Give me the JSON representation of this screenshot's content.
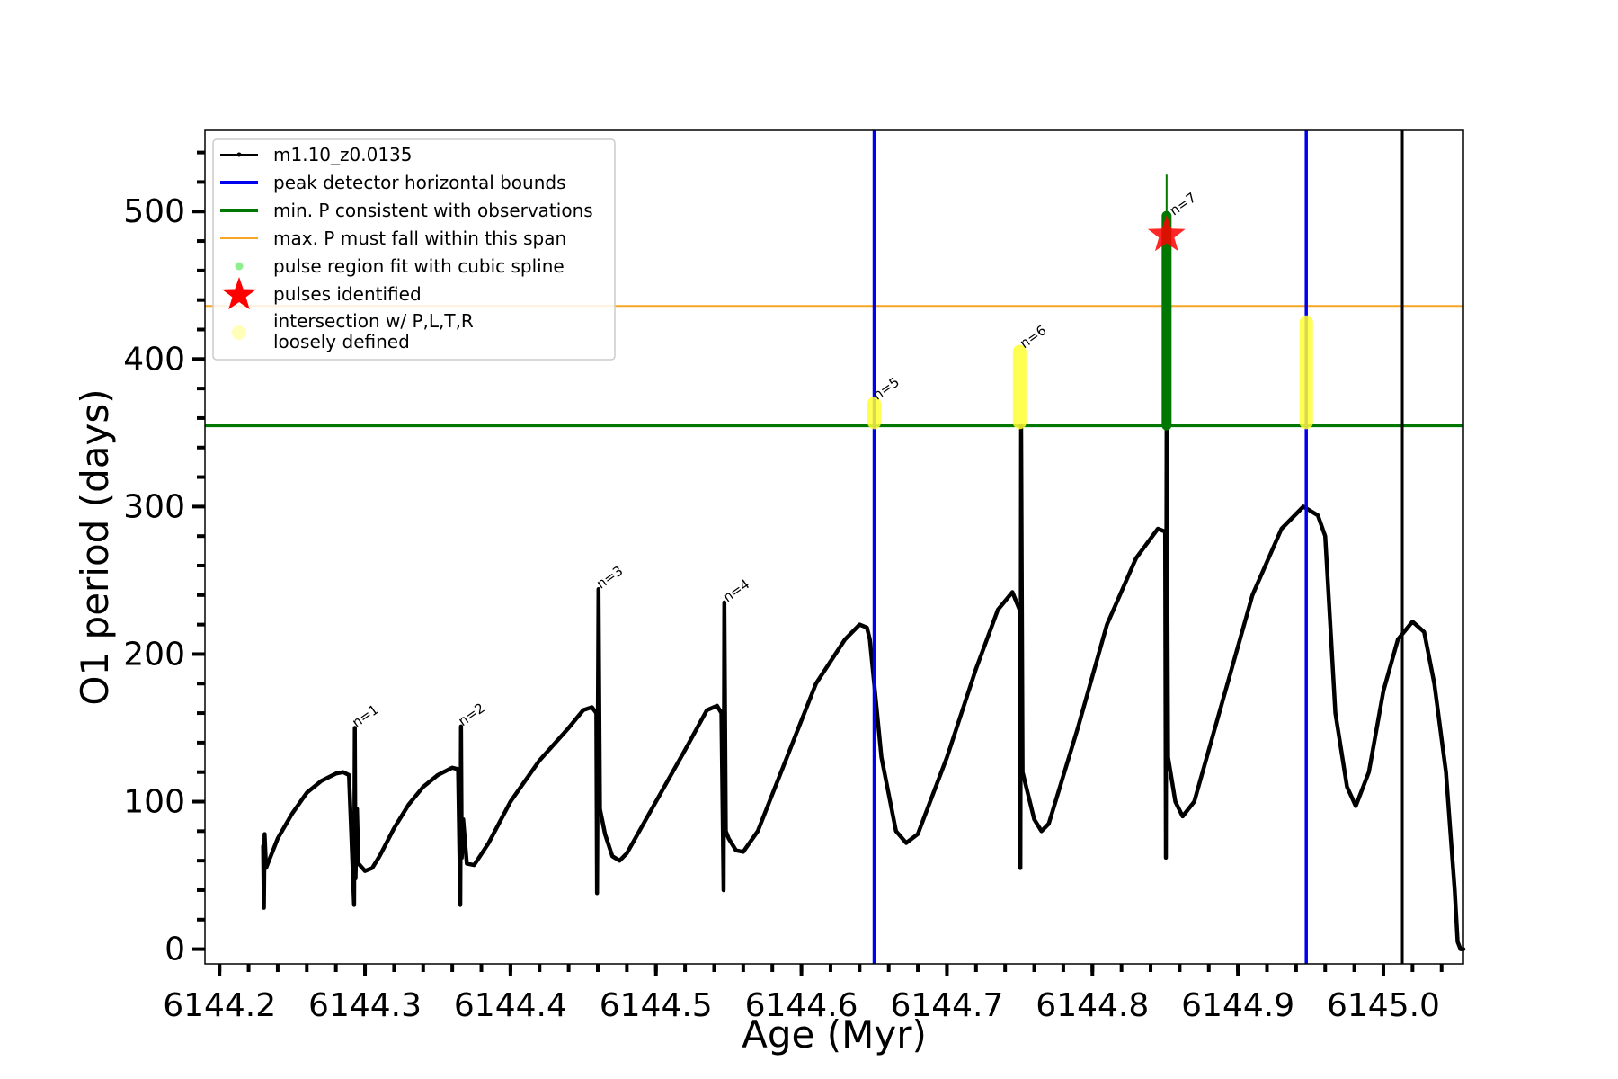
{
  "chart_data": {
    "type": "line",
    "xlabel": "Age (Myr)",
    "ylabel": "O1 period (days)",
    "xlim": [
      6144.19,
      6145.055
    ],
    "ylim": [
      -10,
      555
    ],
    "x_ticks": [
      6144.2,
      6144.3,
      6144.4,
      6144.5,
      6144.6,
      6144.7,
      6144.8,
      6144.9,
      6145.0
    ],
    "x_tick_labels": [
      "6144.2",
      "6144.3",
      "6144.4",
      "6144.5",
      "6144.6",
      "6144.7",
      "6144.8",
      "6144.9",
      "6145.0"
    ],
    "y_ticks": [
      0,
      100,
      200,
      300,
      400,
      500
    ],
    "y_tick_labels": [
      "0",
      "100",
      "200",
      "300",
      "400",
      "500"
    ],
    "grid": false,
    "legend_position": "top-left",
    "colors": {
      "series": "#000000",
      "bounds": "#0000ee",
      "min_p": "#007700",
      "max_p": "#f5a623",
      "spline": "#90ee90",
      "pulse_star": "#ff0000",
      "loose": "#ffff33"
    },
    "series": [
      {
        "name": "m1.10_z0.0135",
        "points": [
          [
            6144.23,
            70
          ],
          [
            6144.2305,
            28
          ],
          [
            6144.231,
            78
          ],
          [
            6144.232,
            55
          ],
          [
            6144.24,
            75
          ],
          [
            6144.25,
            92
          ],
          [
            6144.26,
            106
          ],
          [
            6144.27,
            114
          ],
          [
            6144.28,
            119
          ],
          [
            6144.285,
            120
          ],
          [
            6144.289,
            118
          ],
          [
            6144.2925,
            30
          ],
          [
            6144.293,
            150
          ],
          [
            6144.2935,
            48
          ],
          [
            6144.2945,
            95
          ],
          [
            6144.2955,
            58
          ],
          [
            6144.3,
            53
          ],
          [
            6144.305,
            55
          ],
          [
            6144.31,
            63
          ],
          [
            6144.32,
            82
          ],
          [
            6144.33,
            98
          ],
          [
            6144.34,
            110
          ],
          [
            6144.35,
            118
          ],
          [
            6144.36,
            123
          ],
          [
            6144.364,
            122
          ],
          [
            6144.3655,
            30
          ],
          [
            6144.366,
            151
          ],
          [
            6144.3665,
            62
          ],
          [
            6144.3675,
            88
          ],
          [
            6144.37,
            58
          ],
          [
            6144.375,
            57
          ],
          [
            6144.385,
            72
          ],
          [
            6144.4,
            100
          ],
          [
            6144.42,
            128
          ],
          [
            6144.44,
            150
          ],
          [
            6144.45,
            162
          ],
          [
            6144.456,
            164
          ],
          [
            6144.459,
            160
          ],
          [
            6144.4595,
            38
          ],
          [
            6144.4605,
            244
          ],
          [
            6144.4615,
            95
          ],
          [
            6144.465,
            78
          ],
          [
            6144.47,
            63
          ],
          [
            6144.475,
            60
          ],
          [
            6144.48,
            65
          ],
          [
            6144.5,
            100
          ],
          [
            6144.52,
            135
          ],
          [
            6144.535,
            162
          ],
          [
            6144.542,
            165
          ],
          [
            6144.545,
            160
          ],
          [
            6144.5465,
            40
          ],
          [
            6144.547,
            235
          ],
          [
            6144.548,
            80
          ],
          [
            6144.55,
            75
          ],
          [
            6144.555,
            67
          ],
          [
            6144.56,
            66
          ],
          [
            6144.57,
            80
          ],
          [
            6144.59,
            130
          ],
          [
            6144.61,
            180
          ],
          [
            6144.63,
            210
          ],
          [
            6144.64,
            220
          ],
          [
            6144.645,
            218
          ],
          [
            6144.647,
            210
          ],
          [
            6144.655,
            130
          ],
          [
            6144.665,
            80
          ],
          [
            6144.672,
            72
          ],
          [
            6144.68,
            78
          ],
          [
            6144.7,
            130
          ],
          [
            6144.72,
            190
          ],
          [
            6144.735,
            230
          ],
          [
            6144.745,
            242
          ],
          [
            6144.75,
            230
          ],
          [
            6144.7505,
            55
          ],
          [
            6144.751,
            355
          ],
          [
            6144.752,
            120
          ],
          [
            6144.76,
            88
          ],
          [
            6144.765,
            80
          ],
          [
            6144.77,
            85
          ],
          [
            6144.79,
            150
          ],
          [
            6144.81,
            220
          ],
          [
            6144.83,
            265
          ],
          [
            6144.845,
            285
          ],
          [
            6144.85,
            283
          ],
          [
            6144.8505,
            62
          ],
          [
            6144.851,
            355
          ],
          [
            6144.852,
            130
          ],
          [
            6144.857,
            100
          ],
          [
            6144.862,
            90
          ],
          [
            6144.87,
            100
          ],
          [
            6144.89,
            170
          ],
          [
            6144.91,
            240
          ],
          [
            6144.93,
            285
          ],
          [
            6144.945,
            300
          ],
          [
            6144.955,
            294
          ],
          [
            6144.96,
            280
          ],
          [
            6144.967,
            160
          ],
          [
            6144.975,
            110
          ],
          [
            6144.981,
            97
          ],
          [
            6144.99,
            120
          ],
          [
            6145.0,
            175
          ],
          [
            6145.01,
            210
          ],
          [
            6145.02,
            222
          ],
          [
            6145.028,
            215
          ],
          [
            6145.035,
            180
          ],
          [
            6145.043,
            120
          ],
          [
            6145.046,
            80
          ],
          [
            6145.049,
            40
          ],
          [
            6145.051,
            5
          ],
          [
            6145.053,
            0
          ],
          [
            6145.06,
            0
          ]
        ]
      }
    ],
    "vertical_lines": [
      {
        "name": "peak detector horizontal bounds",
        "x": 6144.65
      },
      {
        "name": "peak detector horizontal bounds",
        "x": 6144.947
      },
      {
        "name": "",
        "x": 6145.013
      }
    ],
    "horizontal_lines": [
      {
        "name": "min. P consistent with observations",
        "y": 355
      },
      {
        "name": "max. P must fall within this span",
        "y": 436
      }
    ],
    "pulse_region_spline": {
      "x": 6144.851,
      "y_range": [
        355,
        525
      ]
    },
    "pulses_identified": [
      {
        "x": 6144.851,
        "y": 484
      }
    ],
    "loosely_defined": [
      {
        "x": 6144.65,
        "y_range": [
          357,
          370
        ]
      },
      {
        "x": 6144.75,
        "y_range": [
          357,
          405
        ]
      },
      {
        "x": 6144.947,
        "y_range": [
          357,
          425
        ]
      }
    ],
    "annotations": [
      {
        "text": "n=1",
        "x": 6144.294,
        "y": 150
      },
      {
        "text": "n=2",
        "x": 6144.367,
        "y": 151
      },
      {
        "text": "n=3",
        "x": 6144.462,
        "y": 244
      },
      {
        "text": "n=4",
        "x": 6144.549,
        "y": 235
      },
      {
        "text": "n=5",
        "x": 6144.652,
        "y": 372
      },
      {
        "text": "n=6",
        "x": 6144.753,
        "y": 407
      },
      {
        "text": "n=7",
        "x": 6144.856,
        "y": 497
      }
    ],
    "legend": [
      {
        "label": "m1.10_z0.0135",
        "marker": "line-dot"
      },
      {
        "label": "peak detector horizontal bounds",
        "marker": "blue-line"
      },
      {
        "label": "min. P consistent with observations",
        "marker": "green-line"
      },
      {
        "label": "max. P must fall within this span",
        "marker": "orange-line"
      },
      {
        "label": "pulse region fit with cubic spline",
        "marker": "lightgreen-dot"
      },
      {
        "label": "pulses identified",
        "marker": "red-star"
      },
      {
        "label": "intersection w/ P,L,T,R",
        "label2": "loosely defined",
        "marker": "yellow-dot"
      }
    ]
  }
}
